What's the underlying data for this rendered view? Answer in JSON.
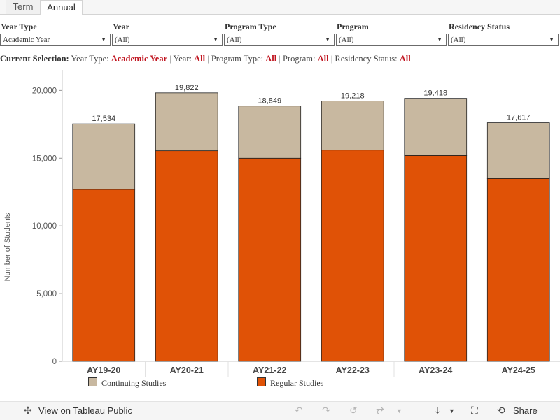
{
  "tabs": [
    "Term",
    "Annual"
  ],
  "filters": [
    {
      "label": "Year Type",
      "value": "Academic Year"
    },
    {
      "label": "Year",
      "value": "(All)"
    },
    {
      "label": "Program Type",
      "value": "(All)"
    },
    {
      "label": "Program",
      "value": "(All)"
    },
    {
      "label": "Residency Status",
      "value": "(All)"
    }
  ],
  "selection": {
    "prefix": "Current Selection:",
    "items": [
      {
        "key": "Year Type:",
        "value": "Academic Year"
      },
      {
        "key": "Year:",
        "value": "All"
      },
      {
        "key": "Program Type:",
        "value": "All"
      },
      {
        "key": "Program:",
        "value": "All"
      },
      {
        "key": "Residency Status:",
        "value": "All"
      }
    ]
  },
  "footer": {
    "view_label": "View on Tableau Public",
    "share_label": "Share"
  },
  "colors": {
    "regular": "#e05206",
    "continuing": "#c8b8a0",
    "accent": "#c0141f"
  },
  "chart_data": {
    "type": "bar",
    "stacked": true,
    "categories": [
      "AY19-20",
      "AY20-21",
      "AY21-22",
      "AY22-23",
      "AY23-24",
      "AY24-25"
    ],
    "series": [
      {
        "name": "Regular Studies",
        "values": [
          12700,
          15550,
          15000,
          15600,
          15200,
          13500
        ]
      },
      {
        "name": "Continuing Studies",
        "values": [
          4834,
          4272,
          3849,
          3618,
          4218,
          4117
        ]
      }
    ],
    "totals": [
      "17,534",
      "19,822",
      "18,849",
      "19,218",
      "19,418",
      "17,617"
    ],
    "ylabel": "Number of Students",
    "ylim": [
      0,
      21000
    ],
    "yticks": [
      0,
      5000,
      10000,
      15000,
      20000
    ],
    "ytick_labels": [
      "0",
      "5,000",
      "10,000",
      "15,000",
      "20,000"
    ],
    "grid": false,
    "legend": "bottom"
  }
}
